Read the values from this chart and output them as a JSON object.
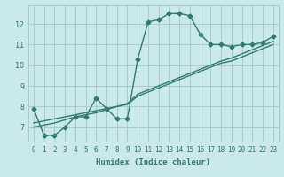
{
  "xlabel": "Humidex (Indice chaleur)",
  "ylabel": "",
  "background_color": "#cce9e9",
  "line_color": "#2d7d6e",
  "x_data": [
    0,
    1,
    2,
    3,
    4,
    5,
    6,
    7,
    8,
    9,
    10,
    11,
    12,
    13,
    14,
    15,
    16,
    17,
    18,
    19,
    20,
    21,
    22,
    23
  ],
  "y_main": [
    7.9,
    6.6,
    6.6,
    7.0,
    7.5,
    7.5,
    8.4,
    7.9,
    7.4,
    7.4,
    10.3,
    12.1,
    12.2,
    12.5,
    12.5,
    12.4,
    11.5,
    11.0,
    11.0,
    10.9,
    11.0,
    11.0,
    11.1,
    11.4
  ],
  "y_line1": [
    7.2,
    7.3,
    7.4,
    7.5,
    7.6,
    7.7,
    7.8,
    7.9,
    8.0,
    8.1,
    8.5,
    8.7,
    8.9,
    9.1,
    9.3,
    9.5,
    9.7,
    9.9,
    10.1,
    10.2,
    10.4,
    10.6,
    10.8,
    11.0
  ],
  "y_line2": [
    7.0,
    7.1,
    7.2,
    7.35,
    7.5,
    7.6,
    7.7,
    7.85,
    8.0,
    8.15,
    8.6,
    8.8,
    9.0,
    9.2,
    9.4,
    9.6,
    9.8,
    10.0,
    10.2,
    10.35,
    10.55,
    10.75,
    10.95,
    11.15
  ],
  "xlim": [
    -0.5,
    23.5
  ],
  "ylim": [
    6.3,
    12.9
  ],
  "yticks": [
    7,
    8,
    9,
    10,
    11,
    12
  ],
  "xticks": [
    0,
    1,
    2,
    3,
    4,
    5,
    6,
    7,
    8,
    9,
    10,
    11,
    12,
    13,
    14,
    15,
    16,
    17,
    18,
    19,
    20,
    21,
    22,
    23
  ],
  "grid_color": "#aacccc",
  "marker": "D",
  "marker_size": 2.5,
  "line_width": 1.0,
  "font_color": "#2d7d6e",
  "tick_fontsize": 5.5,
  "xlabel_fontsize": 6.5
}
